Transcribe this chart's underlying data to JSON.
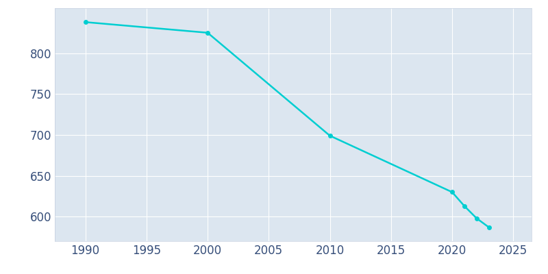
{
  "years": [
    1990,
    2000,
    2010,
    2020,
    2021,
    2022,
    2023
  ],
  "population": [
    838,
    825,
    699,
    630,
    613,
    598,
    587
  ],
  "line_color": "#00CED1",
  "marker": "o",
  "marker_size": 4,
  "background_color": "#dce6f0",
  "plot_bg_color": "#dce6f0",
  "fig_bg_color": "#ffffff",
  "grid_color": "#ffffff",
  "spine_color": "#c5cfe0",
  "tick_color": "#374f7a",
  "xlim": [
    1987.5,
    2026.5
  ],
  "ylim": [
    570,
    855
  ],
  "yticks": [
    600,
    650,
    700,
    750,
    800
  ],
  "xticks": [
    1990,
    1995,
    2000,
    2005,
    2010,
    2015,
    2020,
    2025
  ],
  "tick_label_fontsize": 12,
  "linewidth": 1.8
}
